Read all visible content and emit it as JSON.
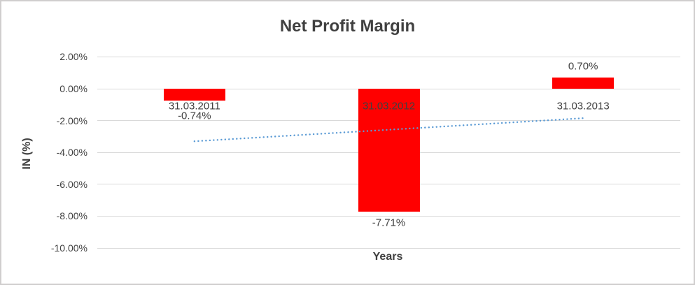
{
  "chart": {
    "title": "Net Profit Margin",
    "x_axis_title": "Years",
    "y_axis_title": "IN (%)"
  },
  "chart_data": {
    "type": "bar",
    "title": "Net Profit Margin",
    "xlabel": "Years",
    "ylabel": "IN (%)",
    "categories": [
      "31.03.2011",
      "31.03.2012",
      "31.03.2013"
    ],
    "values": [
      -0.74,
      -7.71,
      0.7
    ],
    "data_labels": [
      "-0.74%",
      "-7.71%",
      "0.70%"
    ],
    "y_ticks": [
      {
        "label": "2.00%",
        "value": 2
      },
      {
        "label": "0.00%",
        "value": 0
      },
      {
        "label": "-2.00%",
        "value": -2
      },
      {
        "label": "-4.00%",
        "value": -4
      },
      {
        "label": "-6.00%",
        "value": -6
      },
      {
        "label": "-8.00%",
        "value": -8
      },
      {
        "label": "-10.00%",
        "value": -10
      }
    ],
    "ylim": [
      -10,
      2
    ],
    "grid": true,
    "legend": "none",
    "bar_color": "#ff0000",
    "text_color": "#404040",
    "gridline_color": "#d9d9d9",
    "trendline": {
      "type": "linear",
      "style": "dotted",
      "color": "#5b9bd5",
      "start_value": -3.3,
      "end_value": -1.85
    }
  }
}
